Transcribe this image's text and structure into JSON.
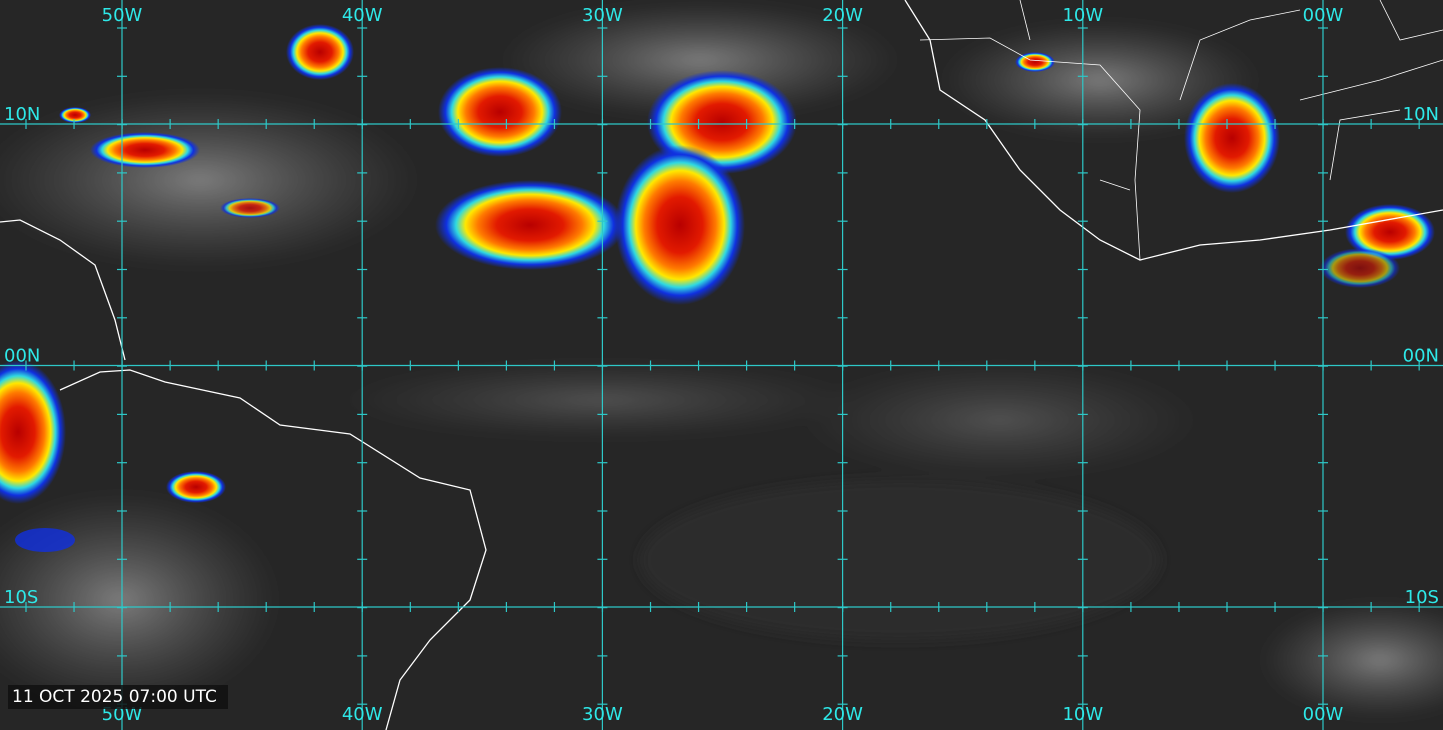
{
  "map": {
    "top_labels": [
      "50W",
      "40W",
      "30W",
      "20W",
      "10W",
      "00W"
    ],
    "bottom_labels": [
      "50W",
      "40W",
      "30W",
      "20W",
      "10W",
      "00W"
    ],
    "left_labels": [
      "10N",
      "00N",
      "10S"
    ],
    "right_labels": [
      "10N",
      "00N",
      "10S"
    ],
    "timestamp": "11 OCT 2025 07:00 UTC"
  }
}
